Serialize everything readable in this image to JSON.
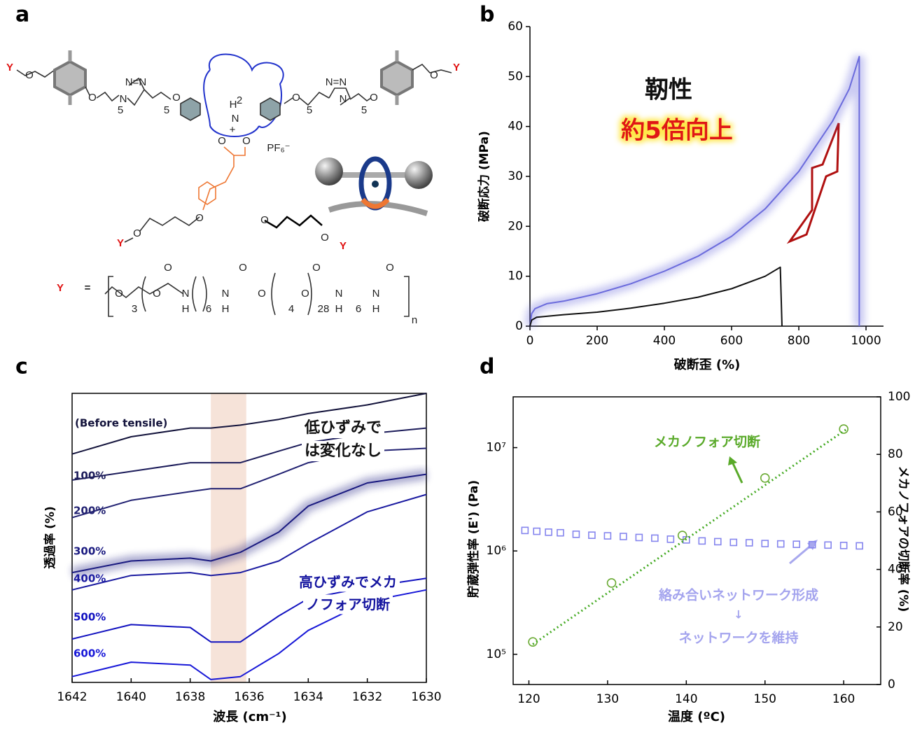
{
  "structure": {
    "panel": "a",
    "labels": [
      "Y",
      "O",
      "O",
      "5",
      "N",
      "N=N",
      "5",
      "O",
      "H",
      "2",
      "N",
      "+",
      "O",
      "5",
      "N=N",
      "N",
      "5",
      "O",
      "O",
      "Y",
      "PF₆⁻",
      "O",
      "O",
      "O",
      "O",
      "Y",
      "O",
      "O",
      "Y",
      "Y",
      "=",
      "O",
      "3",
      "O",
      "O",
      "N",
      "H",
      "6",
      "N",
      "H",
      "O",
      "O",
      "4",
      "O",
      "28",
      "O",
      "N",
      "H",
      "6",
      "N",
      "H",
      "O",
      "n"
    ]
  },
  "chart_data": [
    {
      "type": "line",
      "panel": "b",
      "x_label": "破断歪 (%)",
      "y_label": "破断応力 (MPa)",
      "xlim": [
        0,
        1052
      ],
      "ylim": [
        0,
        60
      ],
      "xticks": [
        0,
        200,
        400,
        600,
        800,
        1000
      ],
      "yticks": [
        0,
        10,
        20,
        30,
        40,
        50,
        60
      ],
      "annotations": [
        "靭性",
        "約5倍向上"
      ],
      "series": [
        {
          "color": "#6b6bdc",
          "glow": true,
          "x": [
            0,
            5,
            15,
            50,
            100,
            200,
            300,
            400,
            500,
            600,
            700,
            800,
            900,
            950,
            980,
            980
          ],
          "values": [
            0,
            2.5,
            3.5,
            4.5,
            5,
            6.5,
            8.5,
            11,
            14,
            18,
            23.5,
            31,
            41,
            47.5,
            54,
            0
          ]
        },
        {
          "color": "#111111",
          "x": [
            0,
            5,
            20,
            100,
            200,
            300,
            400,
            500,
            600,
            700,
            745,
            750
          ],
          "values": [
            0,
            1.2,
            1.8,
            2.3,
            2.8,
            3.6,
            4.6,
            5.8,
            7.5,
            10,
            11.8,
            0
          ]
        }
      ]
    },
    {
      "type": "line",
      "panel": "c",
      "x_label": "波長 (cm⁻¹)",
      "y_label": "透過率 (%)",
      "xlim": [
        1642,
        1630
      ],
      "ylim": [
        0,
        100
      ],
      "xticks": [
        1642,
        1640,
        1638,
        1636,
        1634,
        1632,
        1630
      ],
      "highlight_range": [
        1637.3,
        1636.1
      ],
      "x": [
        1642,
        1640,
        1638,
        1637.3,
        1636.3,
        1635,
        1634,
        1632,
        1630
      ],
      "annotations": [
        "低ひずみで",
        "は変化なし",
        "高ひずみでメカ",
        "ノフォア切断"
      ],
      "series": [
        {
          "name": "(Before tensile)",
          "color": "#14143c",
          "values": [
            79,
            85,
            88,
            88,
            89,
            91,
            93,
            96,
            100
          ]
        },
        {
          "name": "100%",
          "color": "#1c1c5a",
          "values": [
            70,
            73,
            76,
            76,
            76,
            80,
            83,
            86,
            88
          ]
        },
        {
          "name": "200%",
          "color": "#222272",
          "values": [
            57,
            63,
            66,
            67,
            67,
            72,
            76,
            80,
            81
          ]
        },
        {
          "name": "300%",
          "color": "#1a1a80",
          "glow": true,
          "values": [
            38,
            42,
            43,
            42,
            45,
            52,
            61,
            69,
            72
          ]
        },
        {
          "name": "400%",
          "color": "#1a1aa0",
          "values": [
            32,
            37,
            38,
            37,
            38,
            42,
            48,
            59,
            65
          ]
        },
        {
          "name": "500%",
          "color": "#1212c0",
          "values": [
            15,
            20,
            19,
            14,
            14,
            23,
            29,
            33,
            36
          ]
        },
        {
          "name": "600%",
          "color": "#1818d8",
          "values": [
            2,
            7,
            6,
            1,
            2,
            10,
            18,
            28,
            32
          ]
        }
      ]
    },
    {
      "type": "scatter",
      "panel": "d",
      "x_label": "温度 (ºC)",
      "y_label": "貯蔵弾性率 (E') (Pa)",
      "y2_label": "メカノフォアの切断率 (%)",
      "xlim": [
        118,
        164.7
      ],
      "ylim": [
        51000,
        31000000
      ],
      "ylog": true,
      "y2lim": [
        0,
        100
      ],
      "xticks": [
        120,
        130,
        140,
        150,
        160
      ],
      "yticks": [
        {
          "value": 100000,
          "label": "10⁵"
        },
        {
          "value": 1000000,
          "label": "10⁶"
        },
        {
          "value": 10000000,
          "label": "10⁷"
        }
      ],
      "y2ticks": [
        0,
        20,
        40,
        60,
        80,
        100
      ],
      "annotations": [
        "メカノフォア切断",
        "絡み合いネットワーク形成",
        "↓",
        "ネットワークを維持"
      ],
      "series": [
        {
          "color": "#8585ee",
          "marker": "square",
          "x": [
            119.5,
            121,
            122.5,
            124,
            126,
            128,
            130,
            132,
            134,
            136,
            138,
            140,
            142,
            144,
            146,
            148,
            150,
            152,
            154,
            156,
            158,
            160,
            162
          ],
          "values": [
            1580000,
            1550000,
            1520000,
            1500000,
            1450000,
            1420000,
            1400000,
            1380000,
            1350000,
            1330000,
            1300000,
            1280000,
            1250000,
            1230000,
            1210000,
            1200000,
            1180000,
            1170000,
            1160000,
            1150000,
            1140000,
            1130000,
            1120000
          ]
        },
        {
          "color": "#6aaa33",
          "marker": "circle",
          "axis": "y2",
          "x": [
            120.5,
            130.5,
            139.5,
            150,
            160
          ],
          "values": [
            14.8,
            35.3,
            51.8,
            71.8,
            88.8
          ]
        },
        {
          "color": "#44aa22",
          "style": "dotted",
          "axis": "y2",
          "x": [
            120.5,
            160.5
          ],
          "values": [
            14,
            89
          ]
        }
      ]
    }
  ]
}
